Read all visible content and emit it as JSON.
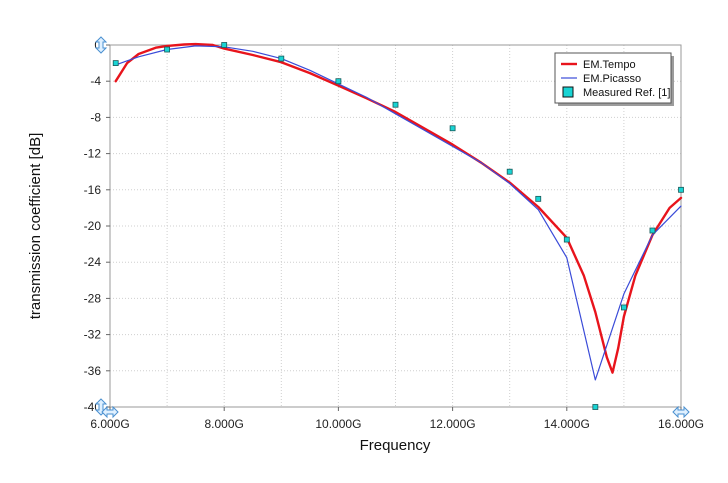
{
  "chart_data": {
    "type": "line",
    "xlabel": "Frequency",
    "ylabel": "transmission coefficient [dB]",
    "xlim": [
      6.0,
      16.0
    ],
    "ylim": [
      -40,
      0
    ],
    "x_ticks": [
      {
        "value": 6.0,
        "label": "6.000G"
      },
      {
        "value": 8.0,
        "label": "8.000G"
      },
      {
        "value": 10.0,
        "label": "10.000G"
      },
      {
        "value": 12.0,
        "label": "12.000G"
      },
      {
        "value": 14.0,
        "label": "14.000G"
      },
      {
        "value": 16.0,
        "label": "16.000G"
      }
    ],
    "y_ticks": [
      {
        "value": 0,
        "label": "0"
      },
      {
        "value": -4,
        "label": "-4"
      },
      {
        "value": -8,
        "label": "-8"
      },
      {
        "value": -12,
        "label": "-12"
      },
      {
        "value": -16,
        "label": "-16"
      },
      {
        "value": -20,
        "label": "-20"
      },
      {
        "value": -24,
        "label": "-24"
      },
      {
        "value": -28,
        "label": "-28"
      },
      {
        "value": -32,
        "label": "-32"
      },
      {
        "value": -36,
        "label": "-36"
      },
      {
        "value": -40,
        "label": "-40"
      }
    ],
    "grid": true,
    "legend_position": "top-right",
    "series": [
      {
        "name": "EM.Tempo",
        "color": "#e8141c",
        "style": "line",
        "x": [
          6.1,
          6.3,
          6.5,
          6.8,
          7.0,
          7.3,
          7.5,
          7.8,
          8.0,
          8.5,
          9.0,
          9.5,
          10.0,
          10.5,
          11.0,
          11.5,
          12.0,
          12.5,
          13.0,
          13.5,
          14.0,
          14.3,
          14.5,
          14.7,
          14.8,
          14.9,
          15.0,
          15.2,
          15.5,
          15.8,
          16.0
        ],
        "y": [
          -4.0,
          -2.0,
          -1.0,
          -0.3,
          -0.1,
          0.05,
          0.1,
          0.0,
          -0.4,
          -1.1,
          -1.9,
          -3.1,
          -4.5,
          -5.9,
          -7.4,
          -9.2,
          -11.0,
          -13.0,
          -15.2,
          -17.9,
          -21.3,
          -25.5,
          -29.5,
          -34.5,
          -36.2,
          -33.5,
          -30.0,
          -25.5,
          -21.0,
          -18.0,
          -16.9
        ]
      },
      {
        "name": "EM.Picasso",
        "color": "#3a4bd8",
        "style": "line",
        "x": [
          6.1,
          6.5,
          7.0,
          7.5,
          8.0,
          8.5,
          9.0,
          9.5,
          10.0,
          10.5,
          11.0,
          11.5,
          12.0,
          12.5,
          13.0,
          13.5,
          14.0,
          14.5,
          15.0,
          15.5,
          16.0
        ],
        "y": [
          -2.2,
          -1.3,
          -0.5,
          -0.1,
          -0.2,
          -0.7,
          -1.5,
          -2.8,
          -4.3,
          -5.8,
          -7.6,
          -9.4,
          -11.2,
          -13.0,
          -15.3,
          -18.2,
          -23.5,
          -37.0,
          -27.5,
          -21.0,
          -17.8
        ]
      },
      {
        "name": "Measured Ref. [1]",
        "color": "#19d4d4",
        "style": "markers",
        "x": [
          6.1,
          7.0,
          8.0,
          9.0,
          10.0,
          11.0,
          12.0,
          13.0,
          13.5,
          14.0,
          14.5,
          15.0,
          15.5,
          16.0
        ],
        "y": [
          -2.0,
          -0.5,
          0.0,
          -1.5,
          -4.0,
          -6.6,
          -9.2,
          -14.0,
          -17.0,
          -21.5,
          -40.0,
          -29.0,
          -20.5,
          -16.0
        ]
      }
    ]
  }
}
